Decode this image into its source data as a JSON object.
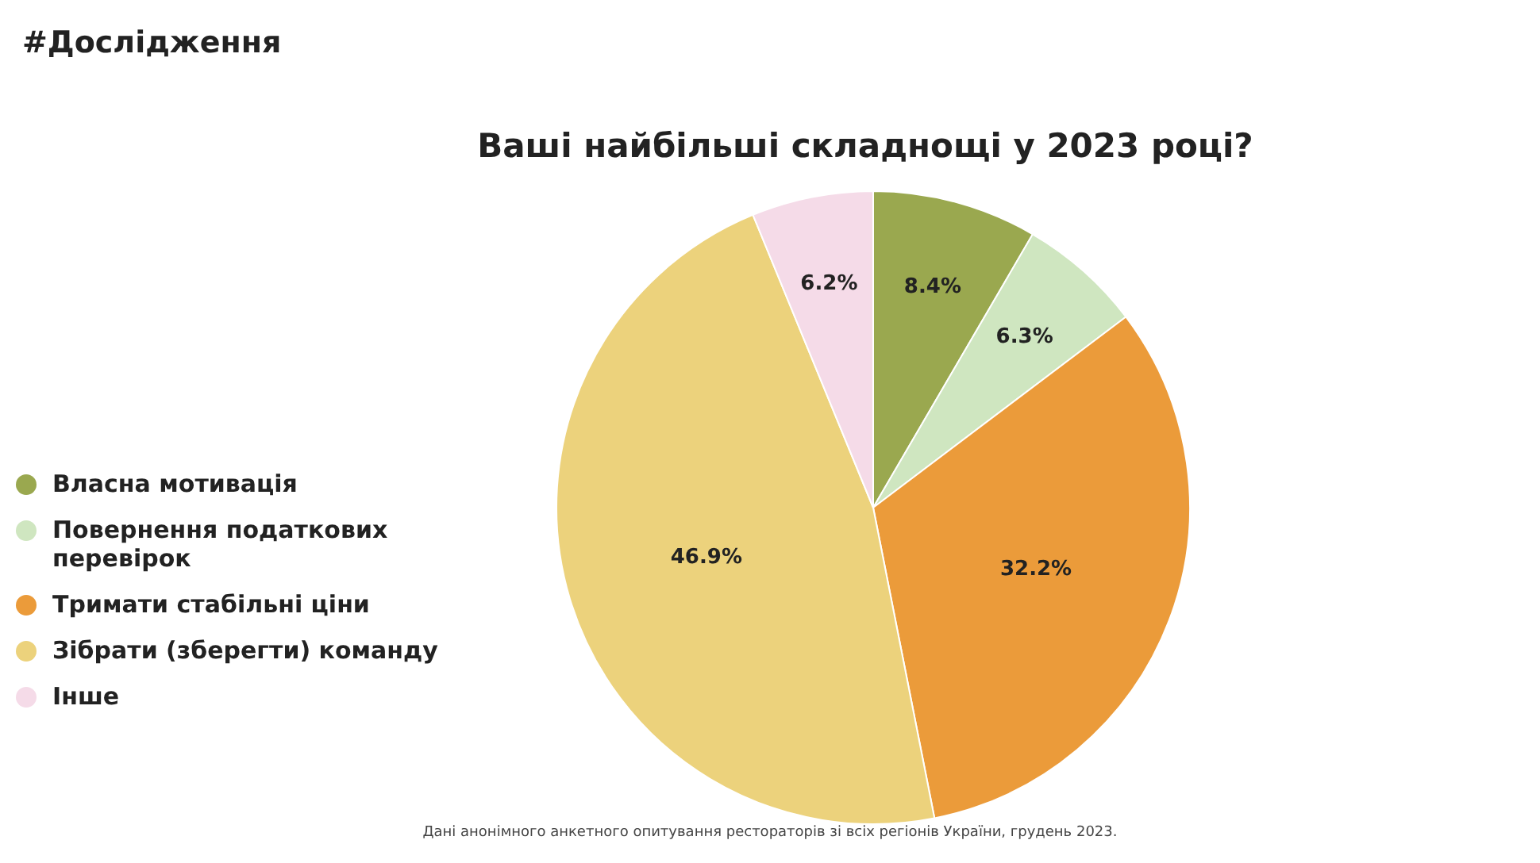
{
  "chart_data": {
    "type": "pie",
    "title": "Ваші найбільші складнощі у 2023 році?",
    "subtitle": "#Дослідження",
    "categories": [
      "Власна мотивація",
      "Повернення податкових перевірок",
      "Тримати стабільні ціни",
      "Зібрати (зберегти) команду",
      "Інше"
    ],
    "values": [
      8.4,
      6.3,
      32.2,
      46.9,
      6.2
    ],
    "colors": [
      "#9aa84f",
      "#cfe6c0",
      "#eb9b3a",
      "#ecd27c",
      "#f5dbe8"
    ],
    "value_labels": [
      "8.4%",
      "6.3%",
      "32.2%",
      "46.9%",
      "6.2%"
    ],
    "legend": "left",
    "annotations": [
      "Дані анонімного анкетного опитування рестораторів зі всіх регіонів України, грудень 2023."
    ]
  }
}
